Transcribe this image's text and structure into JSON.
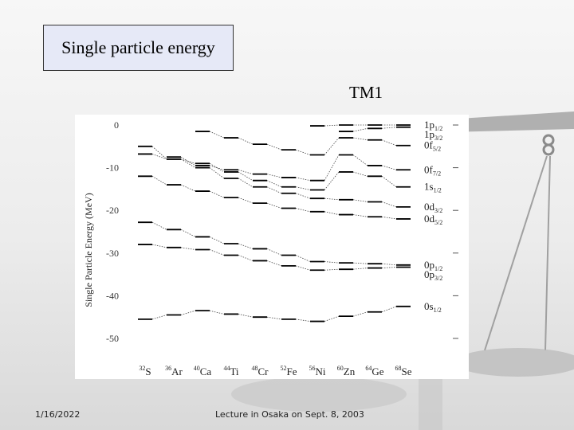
{
  "slide": {
    "title": "Single particle energy",
    "subtitle": "TM1",
    "date": "1/16/2022",
    "footer": "Lecture in Osaka on Sept. 8, 2003"
  },
  "chart_data": {
    "type": "line",
    "title": "",
    "xlabel": "",
    "ylabel": "Single Particle Energy (MeV)",
    "ylim": [
      -55,
      2
    ],
    "yticks": [
      0,
      -10,
      -20,
      -30,
      -40,
      -50
    ],
    "nuclei": [
      {
        "mass": "32",
        "symbol": "S"
      },
      {
        "mass": "36",
        "symbol": "Ar"
      },
      {
        "mass": "40",
        "symbol": "Ca"
      },
      {
        "mass": "44",
        "symbol": "Ti"
      },
      {
        "mass": "48",
        "symbol": "Cr"
      },
      {
        "mass": "52",
        "symbol": "Fe"
      },
      {
        "mass": "56",
        "symbol": "Ni"
      },
      {
        "mass": "60",
        "symbol": "Zn"
      },
      {
        "mass": "64",
        "symbol": "Ge"
      },
      {
        "mass": "68",
        "symbol": "Se"
      }
    ],
    "series": [
      {
        "name": "1p1/2",
        "orb": "1p",
        "sub": "1/2",
        "values": [
          null,
          null,
          null,
          null,
          null,
          null,
          -0.2,
          0.0,
          0.0,
          0.0
        ]
      },
      {
        "name": "1p3/2",
        "orb": "1p",
        "sub": "3/2",
        "values": [
          null,
          null,
          null,
          null,
          null,
          null,
          null,
          -1.5,
          -0.8,
          -0.5
        ]
      },
      {
        "name": "0f5/2",
        "orb": "0f",
        "sub": "5/2",
        "values": [
          null,
          null,
          -1.5,
          -3.0,
          -4.5,
          -5.8,
          -7.0,
          -3.0,
          -3.5,
          -4.8
        ]
      },
      {
        "name": "0f7/2",
        "orb": "0f",
        "sub": "7/2",
        "values": [
          null,
          -7.5,
          -9.5,
          -10.5,
          -11.5,
          -12.3,
          -13.0,
          -7.0,
          -9.5,
          -10.5
        ]
      },
      {
        "name": "1s1/2",
        "orb": "1s",
        "sub": "1/2",
        "values": [
          -5.0,
          -8.0,
          -9.0,
          -11.0,
          -13.0,
          -14.5,
          -15.2,
          -11.0,
          -12.0,
          -14.5
        ]
      },
      {
        "name": "0d3/2",
        "orb": "0d",
        "sub": "3/2",
        "values": [
          -6.8,
          -8.0,
          -10.0,
          -12.5,
          -14.5,
          -16.0,
          -17.2,
          -17.5,
          -18.0,
          -19.2
        ]
      },
      {
        "name": "0d5/2",
        "orb": "0d",
        "sub": "5/2",
        "values": [
          -12.0,
          -14.0,
          -15.5,
          -17.0,
          -18.3,
          -19.5,
          -20.3,
          -21.0,
          -21.5,
          -22.0
        ]
      },
      {
        "name": "0p1/2",
        "orb": "0p",
        "sub": "1/2",
        "values": [
          -22.8,
          -24.5,
          -26.2,
          -27.8,
          -29.0,
          -30.5,
          -32.0,
          -32.3,
          -32.5,
          -32.8
        ]
      },
      {
        "name": "0p3/2",
        "orb": "0p",
        "sub": "3/2",
        "values": [
          -28.0,
          -28.7,
          -29.2,
          -30.5,
          -31.8,
          -33.0,
          -34.0,
          -33.8,
          -33.5,
          -33.3
        ]
      },
      {
        "name": "0s1/2",
        "orb": "0s",
        "sub": "1/2",
        "values": [
          -45.5,
          -44.5,
          -43.5,
          -44.3,
          -45.0,
          -45.5,
          -46.0,
          -44.8,
          -43.8,
          -42.5
        ]
      }
    ]
  }
}
